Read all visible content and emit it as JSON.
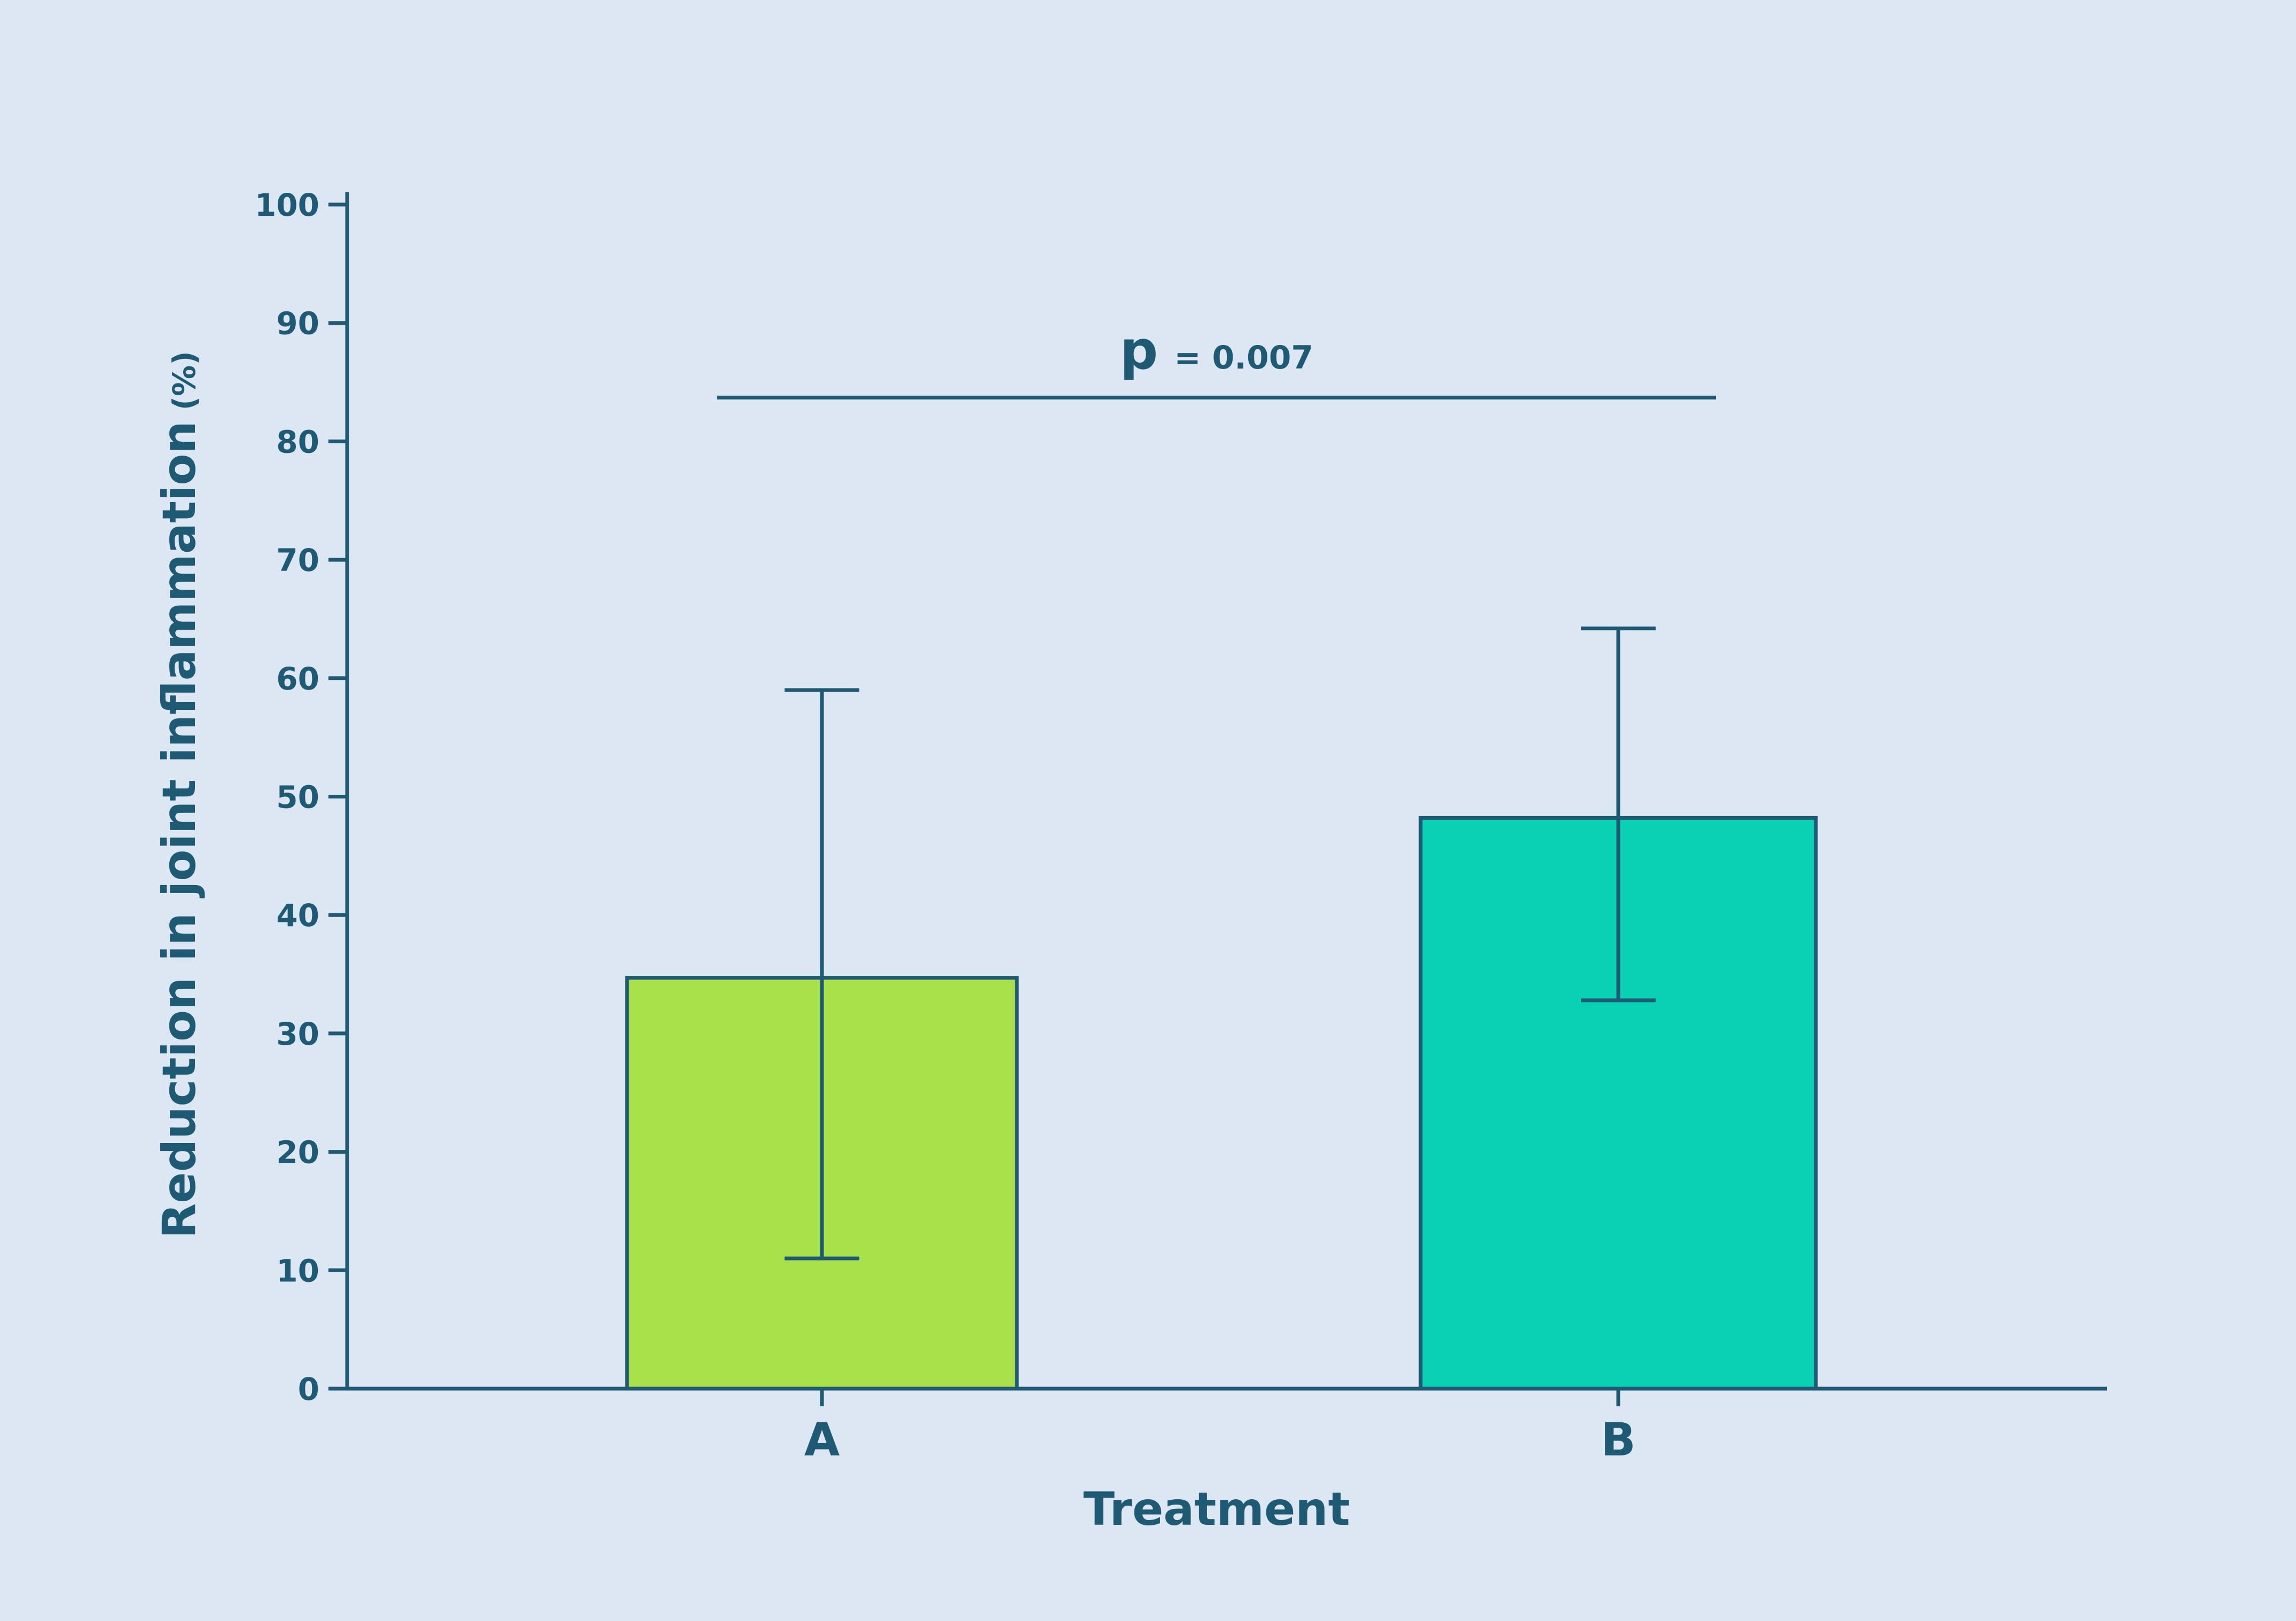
{
  "chart_data": {
    "type": "bar",
    "categories": [
      "A",
      "B"
    ],
    "values": [
      34.7,
      48.2
    ],
    "error_bars": [
      {
        "low": 11.0,
        "high": 59.0
      },
      {
        "low": 32.8,
        "high": 64.2
      }
    ],
    "xlabel": "Treatment",
    "ylabel": "Reduction in joint inflammation",
    "ylabel_unit": "(%)",
    "ylim": [
      0,
      100
    ],
    "yticks": [
      0,
      10,
      20,
      30,
      40,
      50,
      60,
      70,
      80,
      90,
      100
    ],
    "grid": false,
    "annotation": {
      "symbol": "p",
      "text": "= 0.007",
      "between": [
        "A",
        "B"
      ],
      "y": 83.7
    },
    "colors": {
      "A": "#a9e14a",
      "B": "#0ad1b4",
      "axis": "#1f5a75",
      "background": "#dce7f3"
    }
  }
}
